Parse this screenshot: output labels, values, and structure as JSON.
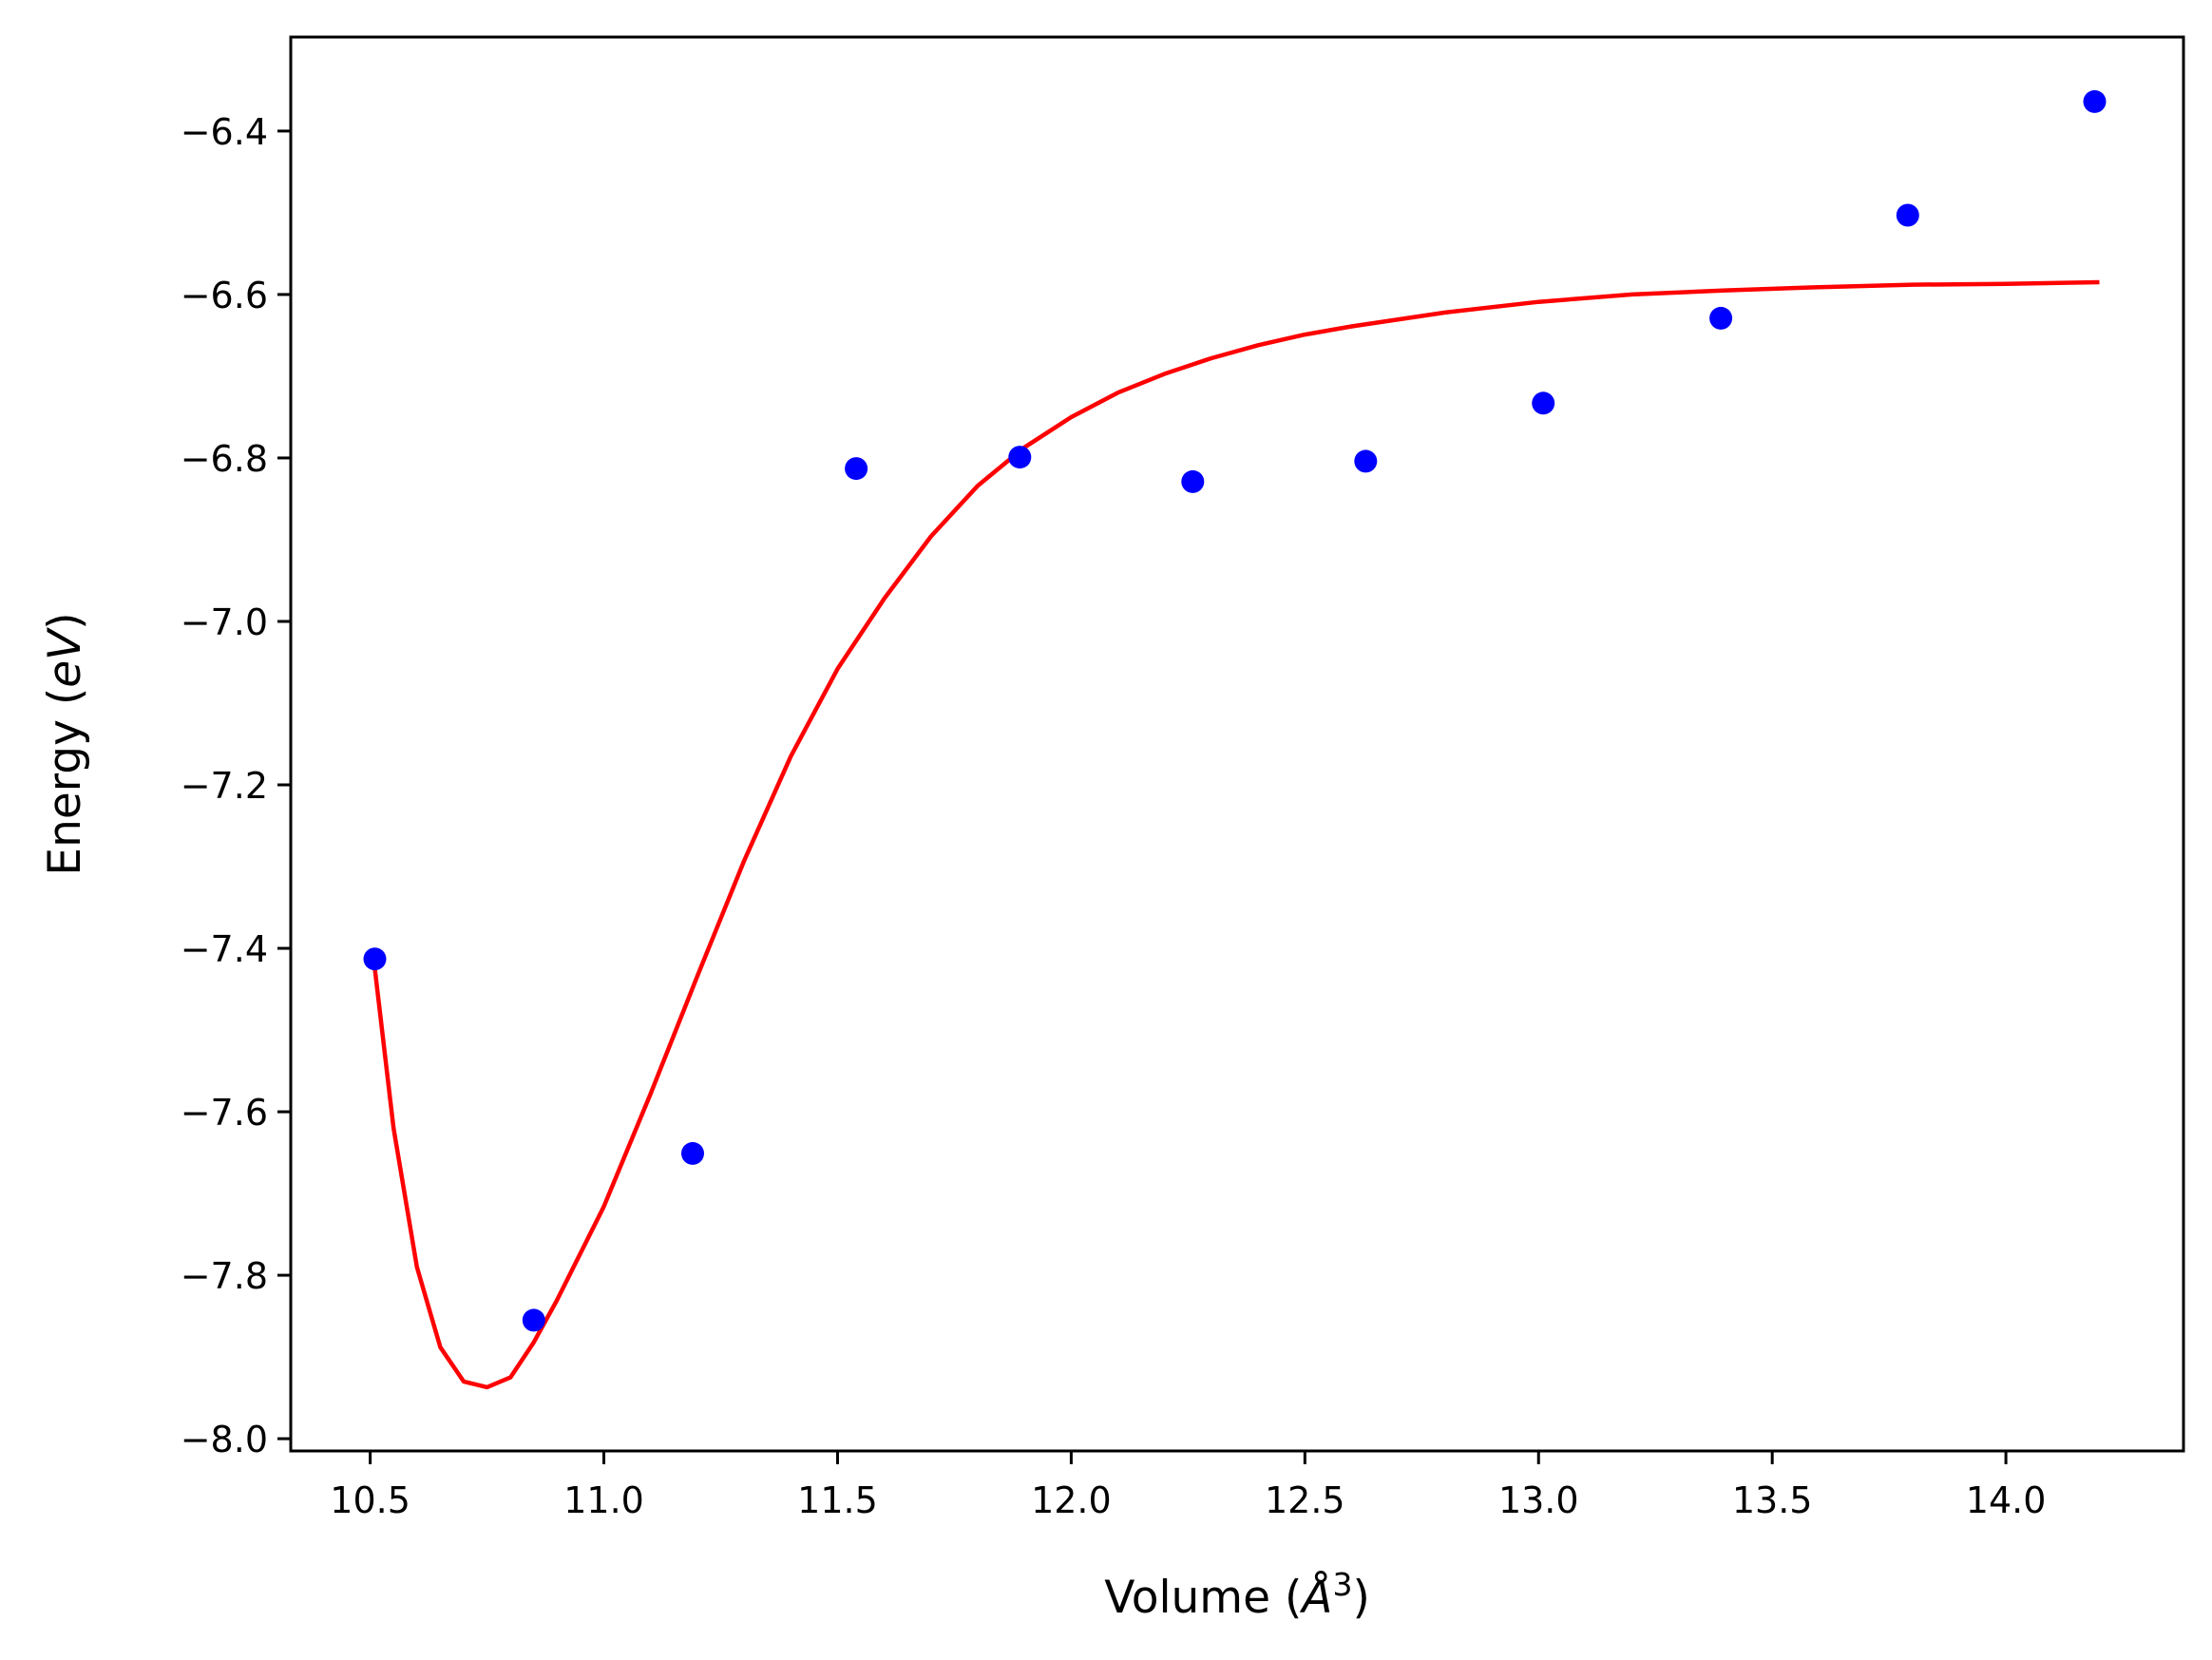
{
  "chart_data": {
    "type": "scatter",
    "title": "",
    "xlabel": "Volume",
    "xlabel_unit_base": "Å",
    "xlabel_unit_exp": "3",
    "ylabel": "Energy",
    "ylabel_unit": "eV",
    "xlim": [
      10.33,
      14.38
    ],
    "ylim": [
      -8.015,
      -6.285
    ],
    "x_ticks": [
      10.5,
      11.0,
      11.5,
      12.0,
      12.5,
      13.0,
      13.5,
      14.0
    ],
    "x_tick_labels": [
      "10.5",
      "11.0",
      "11.5",
      "12.0",
      "12.5",
      "13.0",
      "13.5",
      "14.0"
    ],
    "y_ticks": [
      -8.0,
      -7.8,
      -7.6,
      -7.4,
      -7.2,
      -7.0,
      -6.8,
      -6.6,
      -6.4
    ],
    "y_tick_labels": [
      "−8.0",
      "−7.8",
      "−7.6",
      "−7.4",
      "−7.2",
      "−7.0",
      "−6.8",
      "−6.6",
      "−6.4"
    ],
    "grid": false,
    "legend": "none",
    "series": [
      {
        "kind": "points",
        "color": "#0000ff",
        "x": [
          10.51,
          10.85,
          11.19,
          11.54,
          11.89,
          12.26,
          12.63,
          13.01,
          13.39,
          13.79,
          14.19
        ],
        "y": [
          -7.413,
          -7.855,
          -7.651,
          -6.813,
          -6.799,
          -6.829,
          -6.804,
          -6.733,
          -6.629,
          -6.503,
          -6.364
        ]
      },
      {
        "kind": "line",
        "color": "#ff0000",
        "x": [
          10.51,
          10.55,
          10.6,
          10.65,
          10.7,
          10.75,
          10.8,
          10.85,
          10.9,
          11.0,
          11.1,
          11.2,
          11.3,
          11.4,
          11.5,
          11.6,
          11.7,
          11.8,
          11.9,
          12.0,
          12.1,
          12.2,
          12.3,
          12.4,
          12.5,
          12.6,
          12.8,
          13.0,
          13.2,
          13.4,
          13.6,
          13.8,
          14.0,
          14.2
        ],
        "y": [
          -7.425,
          -7.62,
          -7.79,
          -7.888,
          -7.93,
          -7.937,
          -7.925,
          -7.882,
          -7.83,
          -7.716,
          -7.578,
          -7.434,
          -7.293,
          -7.165,
          -7.058,
          -6.972,
          -6.896,
          -6.834,
          -6.787,
          -6.75,
          -6.72,
          -6.697,
          -6.678,
          -6.662,
          -6.649,
          -6.639,
          -6.622,
          -6.609,
          -6.6,
          -6.595,
          -6.591,
          -6.588,
          -6.587,
          -6.585
        ]
      }
    ]
  }
}
